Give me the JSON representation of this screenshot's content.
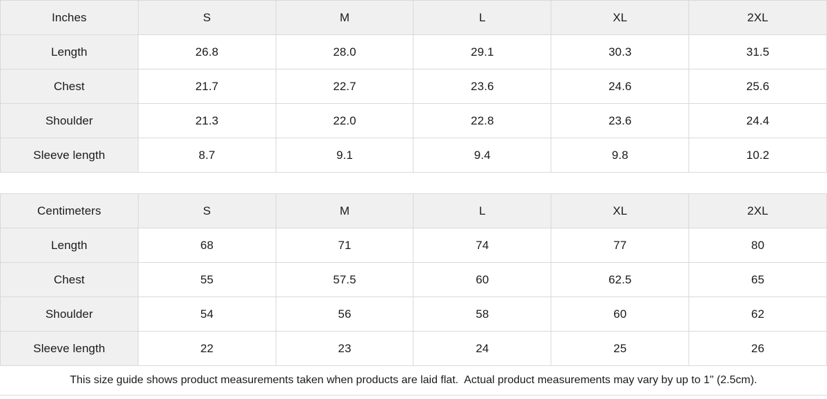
{
  "page": {
    "background": "#ffffff",
    "text_color": "#1a1a1a",
    "grid_border_color": "#d9d9d9",
    "header_fill_color": "#f0f0f0"
  },
  "size_guide": {
    "tables": [
      {
        "id": "inches",
        "unit_label": "Inches",
        "columns": [
          "S",
          "M",
          "L",
          "XL",
          "2XL"
        ],
        "rows": [
          {
            "label": "Length",
            "values": [
              "26.8",
              "28.0",
              "29.1",
              "30.3",
              "31.5"
            ]
          },
          {
            "label": "Chest",
            "values": [
              "21.7",
              "22.7",
              "23.6",
              "24.6",
              "25.6"
            ]
          },
          {
            "label": "Shoulder",
            "values": [
              "21.3",
              "22.0",
              "22.8",
              "23.6",
              "24.4"
            ]
          },
          {
            "label": "Sleeve length",
            "values": [
              "8.7",
              "9.1",
              "9.4",
              "9.8",
              "10.2"
            ]
          }
        ]
      },
      {
        "id": "centimeters",
        "unit_label": "Centimeters",
        "columns": [
          "S",
          "M",
          "L",
          "XL",
          "2XL"
        ],
        "rows": [
          {
            "label": "Length",
            "values": [
              "68",
              "71",
              "74",
              "77",
              "80"
            ]
          },
          {
            "label": "Chest",
            "values": [
              "55",
              "57.5",
              "60",
              "62.5",
              "65"
            ]
          },
          {
            "label": "Shoulder",
            "values": [
              "54",
              "56",
              "58",
              "60",
              "62"
            ]
          },
          {
            "label": "Sleeve length",
            "values": [
              "22",
              "23",
              "24",
              "25",
              "26"
            ]
          }
        ]
      }
    ],
    "footnote": "This size guide shows product measurements taken when products are laid flat.  Actual product measurements may vary by up to 1\" (2.5cm)."
  },
  "chart_data": [
    {
      "type": "table",
      "title": "Inches",
      "columns": [
        "",
        "S",
        "M",
        "L",
        "XL",
        "2XL"
      ],
      "rows": [
        [
          "Length",
          "26.8",
          "28.0",
          "29.1",
          "30.3",
          "31.5"
        ],
        [
          "Chest",
          "21.7",
          "22.7",
          "23.6",
          "24.6",
          "25.6"
        ],
        [
          "Shoulder",
          "21.3",
          "22.0",
          "22.8",
          "23.6",
          "24.4"
        ],
        [
          "Sleeve length",
          "8.7",
          "9.1",
          "9.4",
          "9.8",
          "10.2"
        ]
      ]
    },
    {
      "type": "table",
      "title": "Centimeters",
      "columns": [
        "",
        "S",
        "M",
        "L",
        "XL",
        "2XL"
      ],
      "rows": [
        [
          "Length",
          "68",
          "71",
          "74",
          "77",
          "80"
        ],
        [
          "Chest",
          "55",
          "57.5",
          "60",
          "62.5",
          "65"
        ],
        [
          "Shoulder",
          "54",
          "56",
          "58",
          "60",
          "62"
        ],
        [
          "Sleeve length",
          "22",
          "23",
          "24",
          "25",
          "26"
        ]
      ],
      "note": "This size guide shows product measurements taken when products are laid flat.  Actual product measurements may vary by up to 1\" (2.5cm)."
    }
  ]
}
